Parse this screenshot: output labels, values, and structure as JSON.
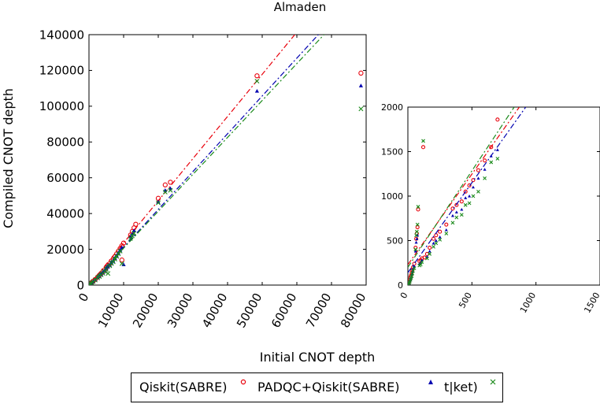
{
  "title": "Almaden",
  "xlabel": "Initial CNOT depth",
  "ylabel": "Compiled  CNOT depth",
  "colors": {
    "qiskit": "#e8000b",
    "padqc": "#0000b0",
    "tket": "#1a8a1a"
  },
  "legend": [
    {
      "label": "Qiskit(SABRE)",
      "marker": "circle"
    },
    {
      "label": "PADQC+Qiskit(SABRE)",
      "marker": "triangle"
    },
    {
      "label": "t|ket)",
      "marker": "x"
    }
  ],
  "chart_data": [
    {
      "type": "scatter",
      "panel": "main",
      "xlim": [
        0,
        80000
      ],
      "ylim": [
        0,
        140000
      ],
      "xticks": [
        0,
        10000,
        20000,
        30000,
        40000,
        50000,
        60000,
        70000,
        80000
      ],
      "yticks": [
        0,
        20000,
        40000,
        60000,
        80000,
        100000,
        120000,
        140000
      ],
      "grid": false,
      "series": [
        {
          "name": "Qiskit(SABRE)",
          "marker": "circle",
          "color": "#e8000b",
          "points": [
            [
              200,
              400
            ],
            [
              500,
              900
            ],
            [
              800,
              1500
            ],
            [
              1200,
              2200
            ],
            [
              1800,
              3200
            ],
            [
              2500,
              4500
            ],
            [
              3000,
              5500
            ],
            [
              3500,
              6500
            ],
            [
              4000,
              7500
            ],
            [
              4500,
              8500
            ],
            [
              5000,
              9800
            ],
            [
              5500,
              11000
            ],
            [
              6000,
              12000
            ],
            [
              6500,
              13500
            ],
            [
              7000,
              14500
            ],
            [
              7500,
              16000
            ],
            [
              8000,
              17500
            ],
            [
              8500,
              19000
            ],
            [
              9000,
              20500
            ],
            [
              9500,
              22000
            ],
            [
              10000,
              23500
            ],
            [
              9500,
              14000
            ],
            [
              12000,
              28000
            ],
            [
              12500,
              30000
            ],
            [
              13000,
              32000
            ],
            [
              13500,
              34000
            ],
            [
              20000,
              48500
            ],
            [
              22000,
              56000
            ],
            [
              23500,
              57500
            ],
            [
              48500,
              117000
            ],
            [
              78500,
              118500
            ]
          ],
          "fit": [
            [
              0,
              0
            ],
            [
              78500,
              185000
            ]
          ]
        },
        {
          "name": "PADQC+Qiskit(SABRE)",
          "marker": "triangle",
          "color": "#0000b0",
          "points": [
            [
              200,
              350
            ],
            [
              500,
              800
            ],
            [
              800,
              1300
            ],
            [
              1200,
              2000
            ],
            [
              1800,
              3000
            ],
            [
              2500,
              4200
            ],
            [
              3000,
              5000
            ],
            [
              3500,
              6000
            ],
            [
              4000,
              7000
            ],
            [
              4500,
              8000
            ],
            [
              5000,
              9200
            ],
            [
              5500,
              10200
            ],
            [
              6000,
              11200
            ],
            [
              6500,
              12500
            ],
            [
              7000,
              13500
            ],
            [
              7500,
              15000
            ],
            [
              8000,
              16500
            ],
            [
              8500,
              18000
            ],
            [
              9000,
              19500
            ],
            [
              9500,
              21000
            ],
            [
              10000,
              11500
            ],
            [
              12000,
              27000
            ],
            [
              12500,
              28500
            ],
            [
              13000,
              30500
            ],
            [
              20000,
              46500
            ],
            [
              22000,
              53000
            ],
            [
              23500,
              54000
            ],
            [
              48500,
              108500
            ],
            [
              78500,
              111500
            ]
          ],
          "fit": [
            [
              0,
              0
            ],
            [
              78500,
              166000
            ]
          ]
        },
        {
          "name": "t|ket)",
          "marker": "x",
          "color": "#1a8a1a",
          "points": [
            [
              200,
              300
            ],
            [
              500,
              700
            ],
            [
              800,
              1200
            ],
            [
              1200,
              1900
            ],
            [
              1800,
              2800
            ],
            [
              2500,
              4000
            ],
            [
              3000,
              4800
            ],
            [
              3500,
              5700
            ],
            [
              4000,
              6600
            ],
            [
              4500,
              7600
            ],
            [
              5000,
              8700
            ],
            [
              5500,
              6500
            ],
            [
              6000,
              10800
            ],
            [
              6500,
              12000
            ],
            [
              7000,
              13000
            ],
            [
              7500,
              14500
            ],
            [
              8000,
              16000
            ],
            [
              8500,
              17500
            ],
            [
              9000,
              19000
            ],
            [
              9500,
              12000
            ],
            [
              12000,
              26000
            ],
            [
              12500,
              27500
            ],
            [
              13000,
              29000
            ],
            [
              20000,
              46000
            ],
            [
              22000,
              52000
            ],
            [
              23500,
              53000
            ],
            [
              48500,
              114000
            ],
            [
              78500,
              98500
            ]
          ],
          "fit": [
            [
              0,
              0
            ],
            [
              78500,
              162000
            ]
          ]
        }
      ]
    },
    {
      "type": "scatter",
      "panel": "inset",
      "xlim": [
        0,
        1500
      ],
      "ylim": [
        0,
        2000
      ],
      "xticks": [
        0,
        500,
        1000,
        1500
      ],
      "yticks": [
        0,
        500,
        1000,
        1500,
        2000
      ],
      "grid": false,
      "series": [
        {
          "name": "Qiskit(SABRE)",
          "marker": "circle",
          "color": "#e8000b",
          "points": [
            [
              5,
              20
            ],
            [
              10,
              40
            ],
            [
              15,
              60
            ],
            [
              20,
              90
            ],
            [
              25,
              110
            ],
            [
              30,
              140
            ],
            [
              35,
              170
            ],
            [
              40,
              200
            ],
            [
              50,
              240
            ],
            [
              60,
              420
            ],
            [
              65,
              520
            ],
            [
              70,
              580
            ],
            [
              75,
              650
            ],
            [
              80,
              850
            ],
            [
              90,
              270
            ],
            [
              100,
              280
            ],
            [
              110,
              300
            ],
            [
              120,
              1550
            ],
            [
              130,
              310
            ],
            [
              150,
              350
            ],
            [
              170,
              420
            ],
            [
              200,
              520
            ],
            [
              220,
              560
            ],
            [
              250,
              600
            ],
            [
              300,
              680
            ],
            [
              350,
              860
            ],
            [
              380,
              900
            ],
            [
              420,
              940
            ],
            [
              450,
              1050
            ],
            [
              480,
              1120
            ],
            [
              510,
              1180
            ],
            [
              550,
              1290
            ],
            [
              600,
              1400
            ],
            [
              650,
              1550
            ],
            [
              700,
              1860
            ]
          ],
          "fit": [
            [
              0,
              230
            ],
            [
              870,
              2000
            ]
          ]
        },
        {
          "name": "PADQC+Qiskit(SABRE)",
          "marker": "triangle",
          "color": "#0000b0",
          "points": [
            [
              5,
              15
            ],
            [
              10,
              30
            ],
            [
              15,
              50
            ],
            [
              20,
              70
            ],
            [
              25,
              90
            ],
            [
              30,
              120
            ],
            [
              35,
              150
            ],
            [
              40,
              180
            ],
            [
              50,
              210
            ],
            [
              60,
              380
            ],
            [
              65,
              480
            ],
            [
              70,
              520
            ],
            [
              75,
              560
            ],
            [
              90,
              240
            ],
            [
              100,
              250
            ],
            [
              110,
              280
            ],
            [
              150,
              320
            ],
            [
              170,
              380
            ],
            [
              200,
              470
            ],
            [
              220,
              500
            ],
            [
              250,
              540
            ],
            [
              300,
              620
            ],
            [
              350,
              780
            ],
            [
              380,
              820
            ],
            [
              420,
              850
            ],
            [
              450,
              980
            ],
            [
              480,
              1000
            ],
            [
              510,
              1100
            ],
            [
              550,
              1200
            ],
            [
              600,
              1300
            ],
            [
              650,
              1450
            ],
            [
              700,
              1520
            ]
          ],
          "fit": [
            [
              0,
              140
            ],
            [
              920,
              2000
            ]
          ]
        },
        {
          "name": "t|ket)",
          "marker": "x",
          "color": "#1a8a1a",
          "points": [
            [
              5,
              10
            ],
            [
              10,
              25
            ],
            [
              15,
              40
            ],
            [
              20,
              60
            ],
            [
              25,
              80
            ],
            [
              30,
              100
            ],
            [
              35,
              130
            ],
            [
              40,
              160
            ],
            [
              50,
              190
            ],
            [
              60,
              400
            ],
            [
              65,
              560
            ],
            [
              70,
              600
            ],
            [
              75,
              680
            ],
            [
              80,
              880
            ],
            [
              90,
              220
            ],
            [
              100,
              230
            ],
            [
              110,
              260
            ],
            [
              120,
              1620
            ],
            [
              150,
              300
            ],
            [
              170,
              350
            ],
            [
              200,
              430
            ],
            [
              220,
              470
            ],
            [
              250,
              510
            ],
            [
              300,
              580
            ],
            [
              350,
              700
            ],
            [
              380,
              760
            ],
            [
              420,
              790
            ],
            [
              450,
              900
            ],
            [
              480,
              920
            ],
            [
              510,
              1000
            ],
            [
              550,
              1050
            ],
            [
              600,
              1200
            ],
            [
              650,
              1380
            ],
            [
              700,
              1420
            ]
          ],
          "fit": [
            [
              0,
              200
            ],
            [
              830,
              2000
            ]
          ]
        }
      ]
    }
  ]
}
